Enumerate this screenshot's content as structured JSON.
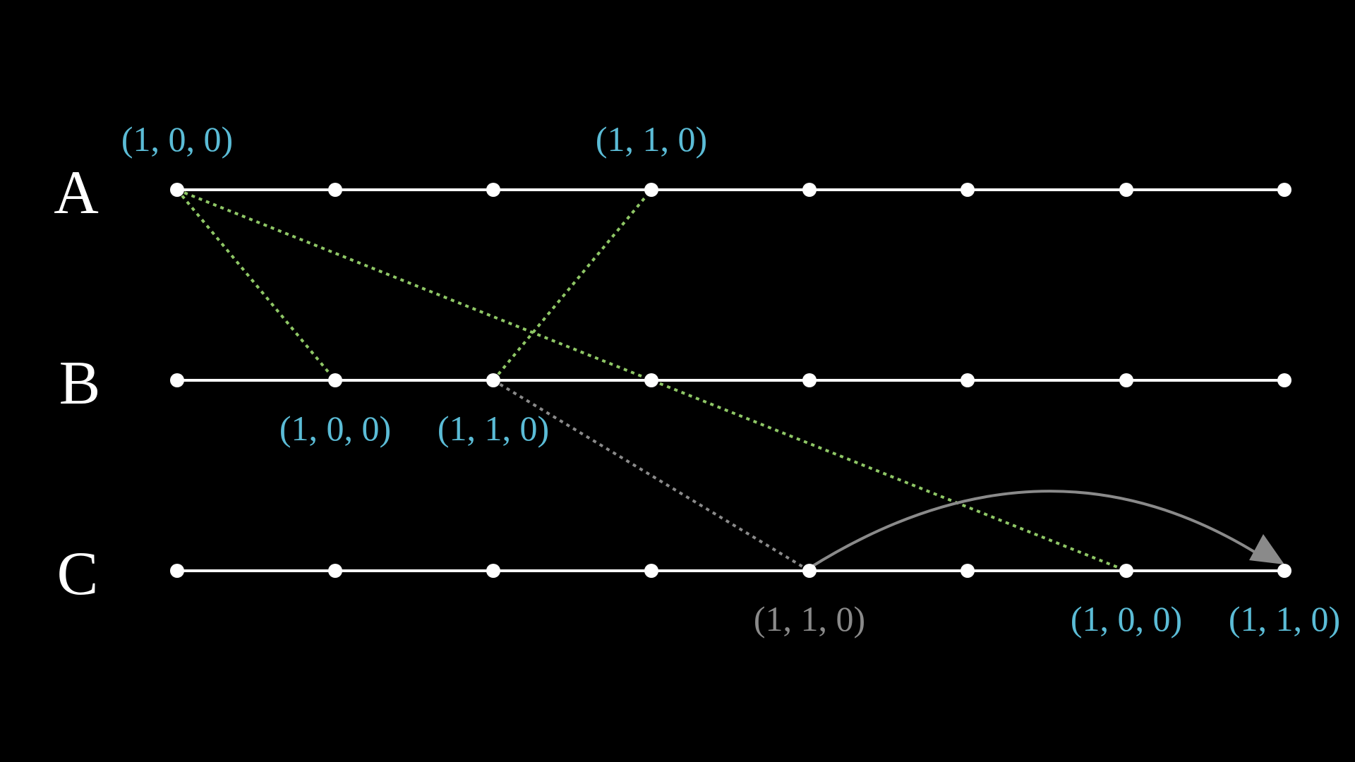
{
  "processes": [
    "A",
    "B",
    "C"
  ],
  "labels": [
    "(1, 0, 0)",
    "(1, 1, 0)",
    "(1, 0, 0)",
    "(1, 1, 0)",
    "(1, 1, 0)",
    "(1, 0, 0)",
    "(1, 1, 0)"
  ]
}
